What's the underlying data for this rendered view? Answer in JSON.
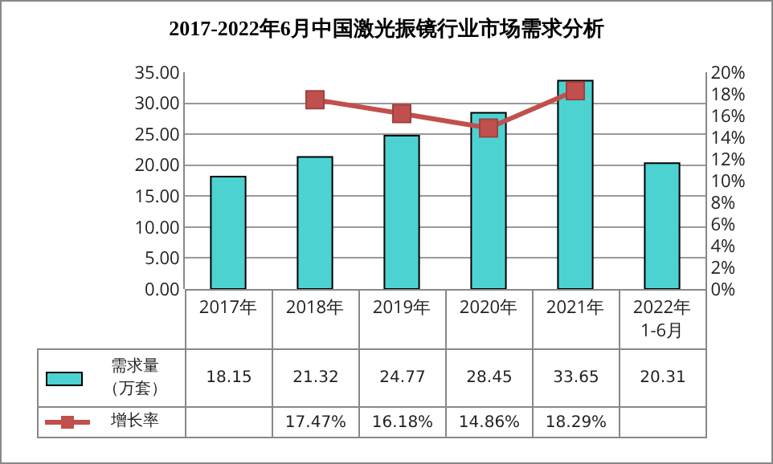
{
  "chart_data": {
    "type": "bar",
    "title": "2017-2022年6月中国激光振镜行业市场需求分析",
    "categories": [
      "2017年",
      "2018年",
      "2019年",
      "2020年",
      "2021年",
      "2022年\n1-6月"
    ],
    "series": [
      {
        "name": "需求量（万套）",
        "color": "#4dd2d2",
        "values": [
          18.15,
          21.32,
          24.77,
          28.45,
          33.65,
          20.31
        ],
        "value_labels": [
          "18.15",
          "21.32",
          "24.77",
          "28.45",
          "33.65",
          "20.31"
        ]
      },
      {
        "name": "增长率",
        "type": "line",
        "axis": "y2",
        "color": "#c0504d",
        "marker": "square",
        "values": [
          null,
          17.47,
          16.18,
          14.86,
          18.29,
          null
        ],
        "value_labels": [
          null,
          "17.47%",
          "16.18%",
          "14.86%",
          "18.29%",
          null
        ]
      }
    ],
    "ylim": [
      0,
      35
    ],
    "yticks": [
      {
        "value": 0,
        "label": "0.00"
      },
      {
        "value": 5,
        "label": "5.00"
      },
      {
        "value": 10,
        "label": "10.00"
      },
      {
        "value": 15,
        "label": "15.00"
      },
      {
        "value": 20,
        "label": "20.00"
      },
      {
        "value": 25,
        "label": "25.00"
      },
      {
        "value": 30,
        "label": "30.00"
      },
      {
        "value": 35,
        "label": "35.00"
      }
    ],
    "y2lim": [
      0,
      20
    ],
    "y2ticks": [
      {
        "value": 0,
        "label": "0%"
      },
      {
        "value": 2,
        "label": "2%"
      },
      {
        "value": 4,
        "label": "4%"
      },
      {
        "value": 6,
        "label": "6%"
      },
      {
        "value": 8,
        "label": "8%"
      },
      {
        "value": 10,
        "label": "10%"
      },
      {
        "value": 12,
        "label": "12%"
      },
      {
        "value": 14,
        "label": "14%"
      },
      {
        "value": 16,
        "label": "16%"
      },
      {
        "value": 18,
        "label": "18%"
      },
      {
        "value": 20,
        "label": "20%"
      }
    ],
    "grid": "y",
    "legend": "bottom left"
  }
}
